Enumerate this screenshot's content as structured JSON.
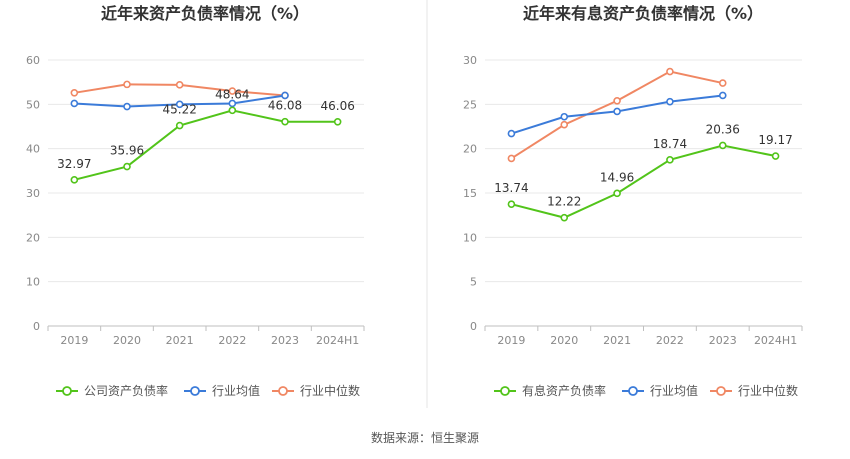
{
  "source": "数据来源：恒生聚源",
  "chart_data": [
    {
      "type": "line",
      "title": "近年来资产负债率情况（%）",
      "categories": [
        "2019",
        "2020",
        "2021",
        "2022",
        "2023",
        "2024H1"
      ],
      "ylim": [
        0,
        60
      ],
      "yticks": [
        0,
        10,
        20,
        30,
        40,
        50,
        60
      ],
      "legend_position": "bottom",
      "grid": true,
      "series": [
        {
          "name": "公司资产负债率",
          "color": "#52c41a",
          "values": [
            32.97,
            35.96,
            45.22,
            48.64,
            46.08,
            46.06
          ],
          "labels": [
            "32.97",
            "35.96",
            "45.22",
            "48.64",
            "46.08",
            "46.06"
          ]
        },
        {
          "name": "行业均值",
          "color": "#3b7bd9",
          "values": [
            50.2,
            49.5,
            50.0,
            50.2,
            52.0,
            null
          ]
        },
        {
          "name": "行业中位数",
          "color": "#f08763",
          "values": [
            52.6,
            54.5,
            54.4,
            53.0,
            52.0,
            null
          ]
        }
      ]
    },
    {
      "type": "line",
      "title": "近年来有息资产负债率情况（%）",
      "categories": [
        "2019",
        "2020",
        "2021",
        "2022",
        "2023",
        "2024H1"
      ],
      "ylim": [
        0,
        30
      ],
      "yticks": [
        0,
        5,
        10,
        15,
        20,
        25,
        30
      ],
      "legend_position": "bottom",
      "grid": true,
      "series": [
        {
          "name": "有息资产负债率",
          "color": "#52c41a",
          "values": [
            13.74,
            12.22,
            14.96,
            18.74,
            20.36,
            19.17
          ],
          "labels": [
            "13.74",
            "12.22",
            "14.96",
            "18.74",
            "20.36",
            "19.17"
          ]
        },
        {
          "name": "行业均值",
          "color": "#3b7bd9",
          "values": [
            21.7,
            23.6,
            24.2,
            25.3,
            26.0,
            null
          ]
        },
        {
          "name": "行业中位数",
          "color": "#f08763",
          "values": [
            18.9,
            22.7,
            25.4,
            28.7,
            27.4,
            null
          ]
        }
      ]
    }
  ]
}
